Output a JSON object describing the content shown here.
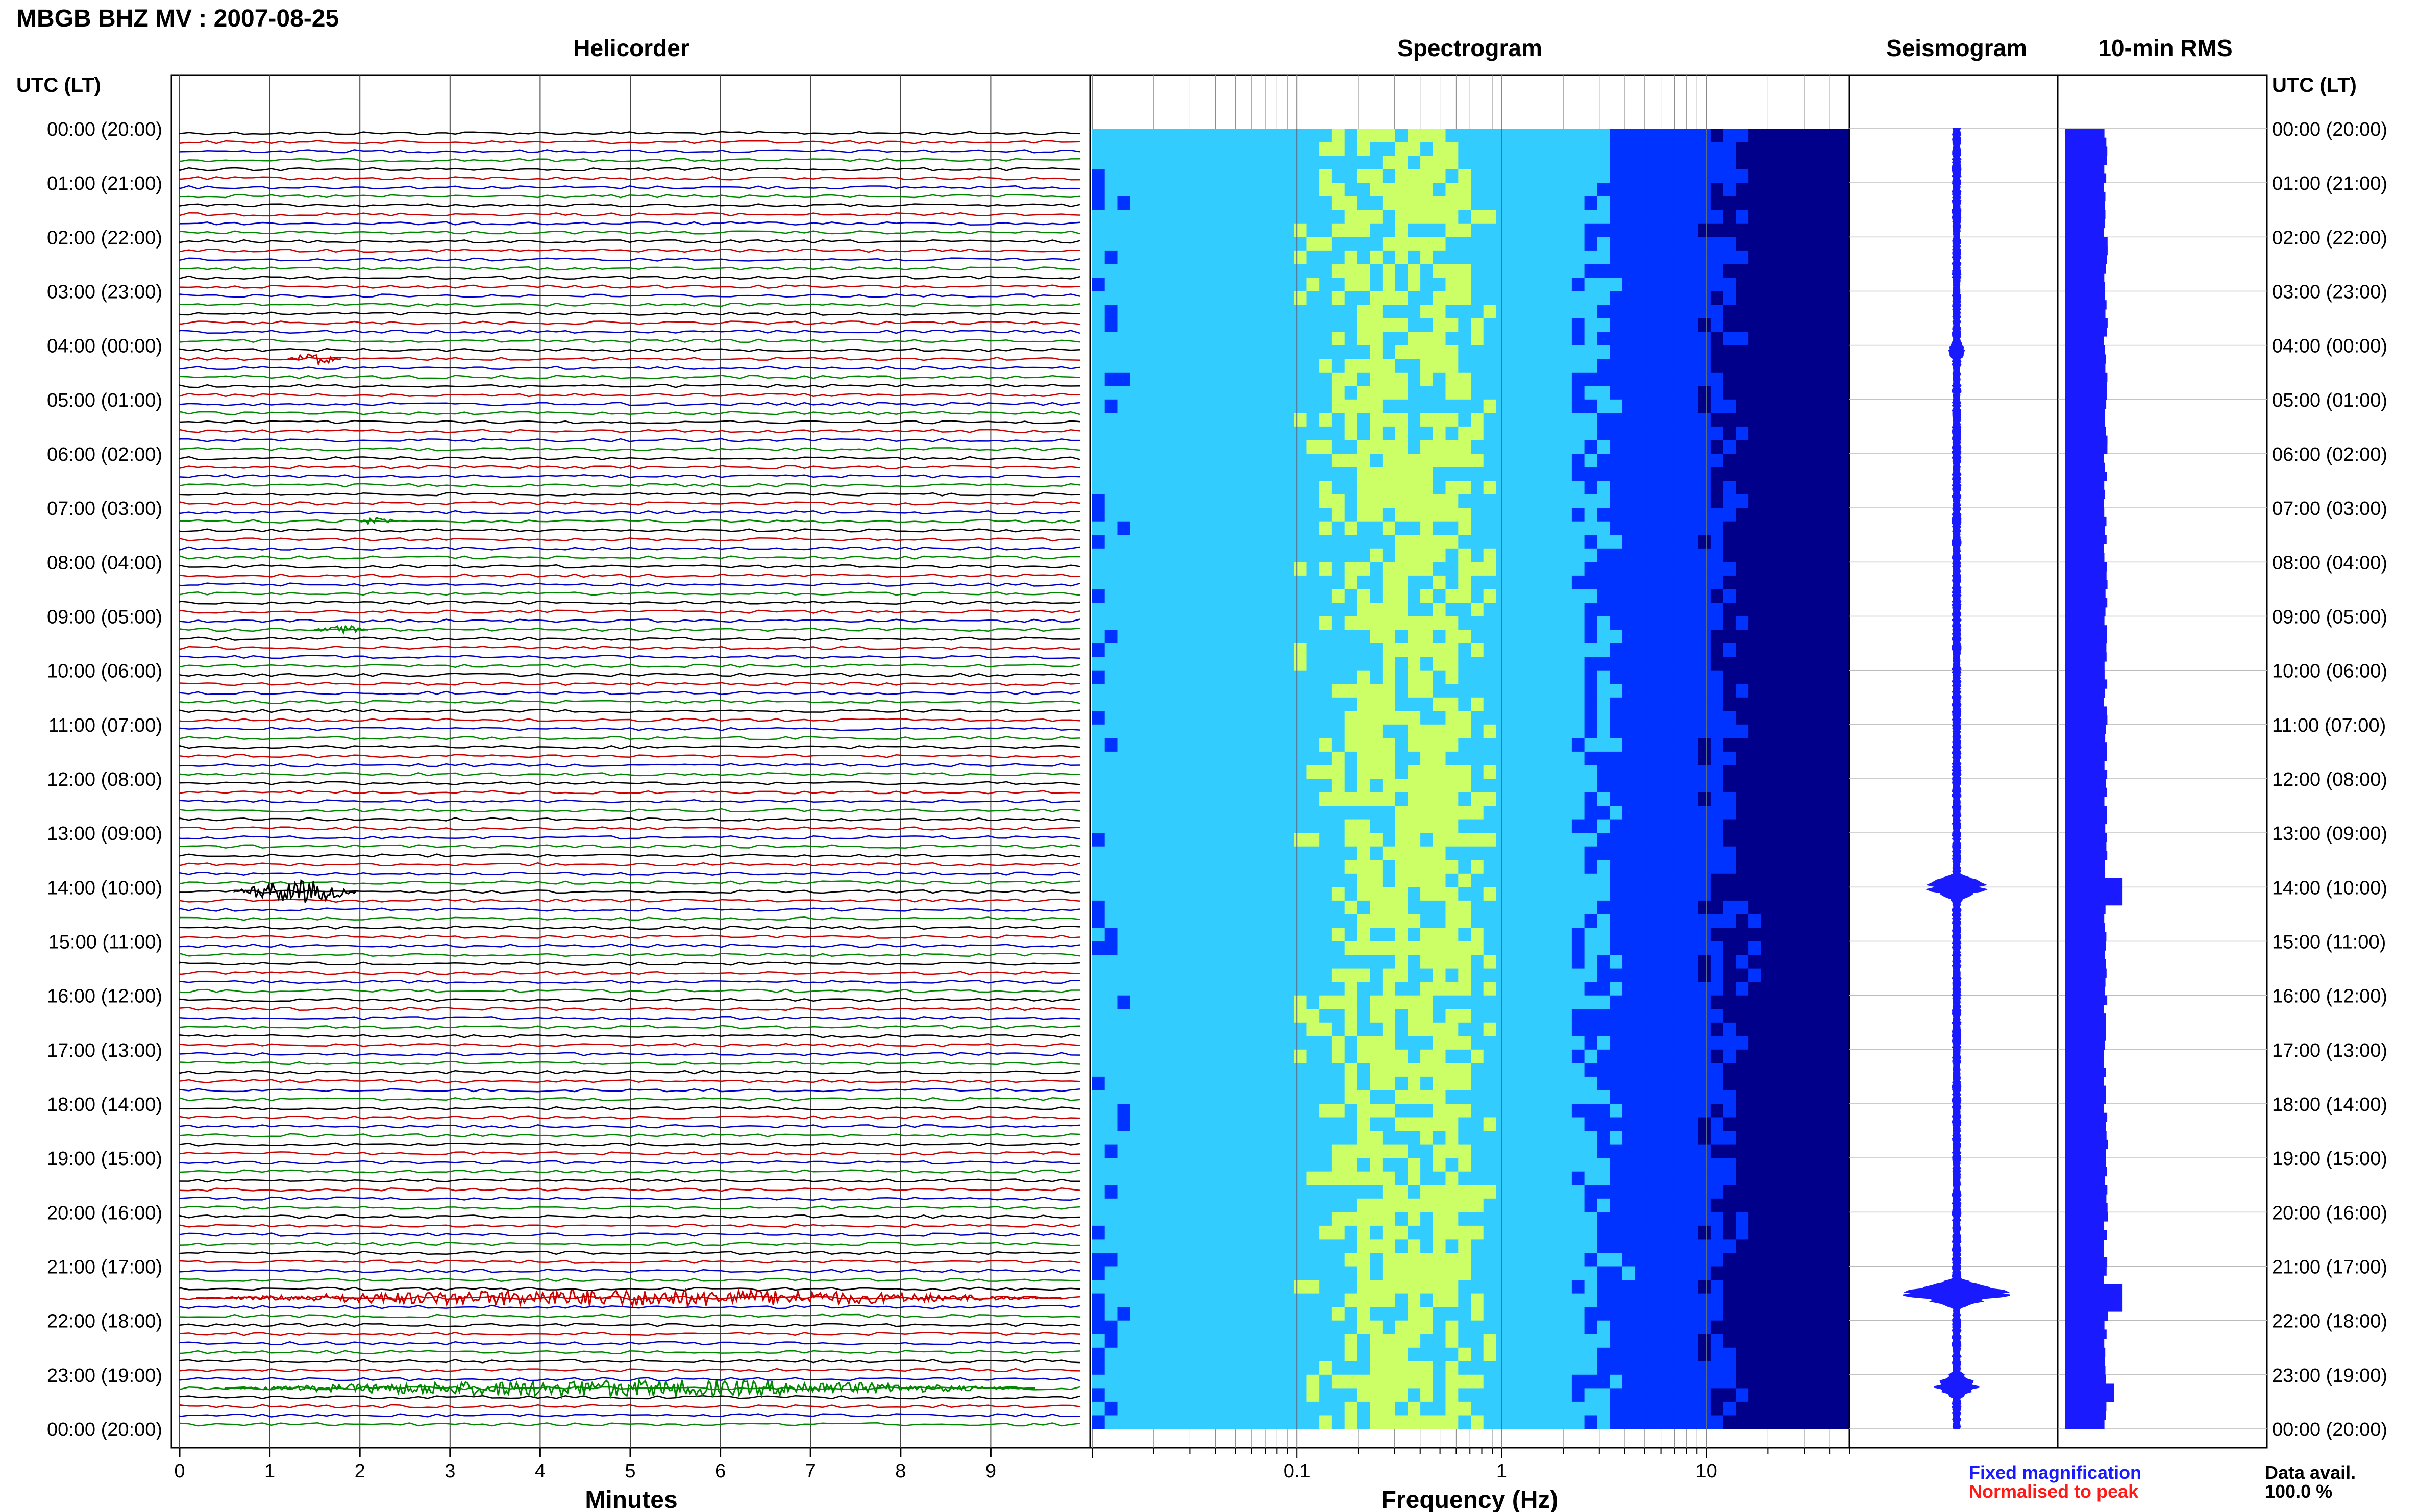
{
  "figure": {
    "title": "MBGB BHZ MV : 2007-08-25",
    "panels": {
      "helicorder": "Helicorder",
      "spectrogram": "Spectrogram",
      "seismogram": "Seismogram",
      "rms": "10-min RMS"
    },
    "left_axis_header": "UTC (LT)",
    "right_axis_header": "UTC (LT)",
    "legend": {
      "fixed": "Fixed magnification",
      "fixed_color": "#1a1aff",
      "normalised": "Normalised to peak",
      "normalised_color": "#ff1a1a"
    },
    "availability": {
      "label": "Data avail.",
      "value": "100.0 %"
    },
    "colors": {
      "trace_cycle": [
        "#000000",
        "#cc0000",
        "#0000cc",
        "#008800"
      ],
      "seismogram": "#1a1aff",
      "rms": "#1a1aff"
    }
  },
  "chart_data": [
    {
      "type": "line",
      "name": "helicorder",
      "title": "Helicorder",
      "xlabel": "Minutes",
      "xlim": [
        0,
        10
      ],
      "xticks": [
        "0",
        "1",
        "2",
        "3",
        "4",
        "5",
        "6",
        "7",
        "8",
        "9"
      ],
      "rows_per_hour": 6,
      "hours": [
        "00:00 (20:00)",
        "01:00 (21:00)",
        "02:00 (22:00)",
        "03:00 (23:00)",
        "04:00 (00:00)",
        "05:00 (01:00)",
        "06:00 (02:00)",
        "07:00 (03:00)",
        "08:00 (04:00)",
        "09:00 (05:00)",
        "10:00 (06:00)",
        "11:00 (07:00)",
        "12:00 (08:00)",
        "13:00 (09:00)",
        "14:00 (10:00)",
        "15:00 (11:00)",
        "16:00 (12:00)",
        "17:00 (13:00)",
        "18:00 (14:00)",
        "19:00 (15:00)",
        "20:00 (16:00)",
        "21:00 (17:00)",
        "22:00 (18:00)",
        "23:00 (19:00)",
        "00:00 (20:00)"
      ],
      "events": [
        {
          "hour": 4.1,
          "minute_start": 1.2,
          "minute_end": 1.8,
          "amplitude": 0.4
        },
        {
          "hour": 7.1,
          "minute_start": 2.0,
          "minute_end": 2.4,
          "amplitude": 0.3
        },
        {
          "hour": 9.1,
          "minute_start": 1.5,
          "minute_end": 2.1,
          "amplitude": 0.3
        },
        {
          "hour": 14.0,
          "minute_start": 0.6,
          "minute_end": 2.0,
          "amplitude": 0.8
        },
        {
          "hour": 21.5,
          "minute_start": 0.2,
          "minute_end": 9.8,
          "amplitude": 0.6
        },
        {
          "hour": 23.1,
          "minute_start": 0.5,
          "minute_end": 9.5,
          "amplitude": 0.6
        }
      ]
    },
    {
      "type": "heatmap",
      "name": "spectrogram",
      "title": "Spectrogram",
      "xlabel": "Frequency (Hz)",
      "x_scale": "log",
      "xlim": [
        0.01,
        50
      ],
      "xticks": [
        "0.1",
        "1",
        "10"
      ],
      "colormap": [
        "#00008b",
        "#0033ff",
        "#33ccff",
        "#ccff66"
      ],
      "peak_band_hz": [
        0.2,
        0.6
      ],
      "hours": 24
    },
    {
      "type": "line",
      "name": "seismogram",
      "title": "Seismogram",
      "hours": 24,
      "spikes": [
        {
          "hour": 14.0,
          "amplitude": 0.35
        },
        {
          "hour": 21.5,
          "amplitude": 0.6
        },
        {
          "hour": 23.2,
          "amplitude": 0.25
        },
        {
          "hour": 4.1,
          "amplitude": 0.1
        }
      ]
    },
    {
      "type": "bar",
      "name": "rms",
      "title": "10-min RMS",
      "orientation": "horizontal",
      "base_level": 0.23,
      "peaks": [
        {
          "hour": 14.0,
          "value": 0.31
        },
        {
          "hour": 21.5,
          "value": 0.31
        },
        {
          "hour": 23.2,
          "value": 0.27
        }
      ]
    }
  ]
}
